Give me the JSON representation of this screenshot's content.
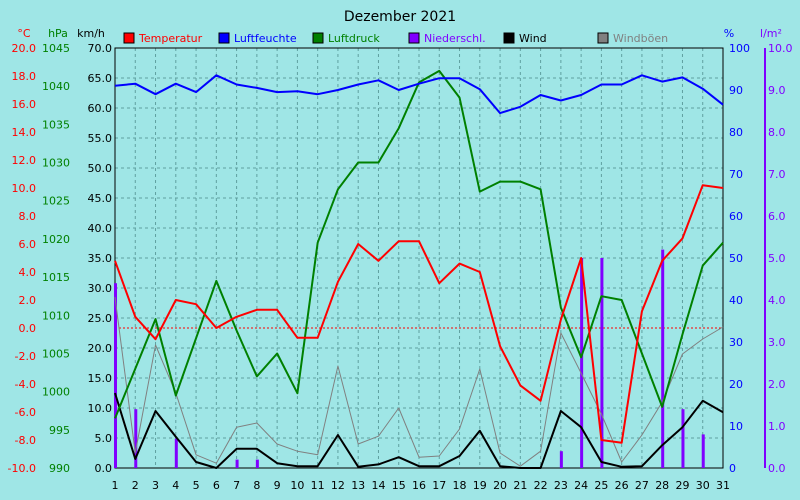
{
  "chart_data": {
    "type": "line",
    "title": "Dezember 2021",
    "x": [
      1,
      2,
      3,
      4,
      5,
      6,
      7,
      8,
      9,
      10,
      11,
      12,
      13,
      14,
      15,
      16,
      17,
      18,
      19,
      20,
      21,
      22,
      23,
      24,
      25,
      26,
      27,
      28,
      29,
      30,
      31
    ],
    "axes": {
      "temperature": {
        "unit": "°C",
        "range": [
          -10,
          20
        ],
        "ticks": [
          "20.0",
          "18.0",
          "16.0",
          "14.0",
          "12.0",
          "10.0",
          "8.0",
          "6.0",
          "4.0",
          "2.0",
          "0.0",
          "-2.0",
          "-4.0",
          "-6.0",
          "-8.0",
          "-10.0"
        ],
        "color": "#ff0000"
      },
      "pressure": {
        "unit": "hPa",
        "range": [
          990,
          1045
        ],
        "ticks": [
          "1045",
          "1040",
          "1035",
          "1030",
          "1025",
          "1020",
          "1015",
          "1010",
          "1005",
          "1000",
          "995",
          "990"
        ],
        "color": "#008000"
      },
      "wind": {
        "unit": "km/h",
        "range": [
          0,
          70
        ],
        "ticks": [
          "70.0",
          "65.0",
          "60.0",
          "55.0",
          "50.0",
          "45.0",
          "40.0",
          "35.0",
          "30.0",
          "25.0",
          "20.0",
          "15.0",
          "10.0",
          "5.0",
          "0.0"
        ],
        "color": "#000000"
      },
      "humidity": {
        "unit": "%",
        "range": [
          0,
          100
        ],
        "ticks": [
          "100",
          "90",
          "80",
          "70",
          "60",
          "50",
          "40",
          "30",
          "20",
          "10",
          "0"
        ],
        "color": "#0000ff"
      },
      "precipitation": {
        "unit": "l/m²",
        "range": [
          0,
          10
        ],
        "ticks": [
          "10.0",
          "9.0",
          "8.0",
          "7.0",
          "6.0",
          "5.0",
          "4.0",
          "3.0",
          "2.0",
          "1.0",
          "0.0"
        ],
        "color": "#8000ff"
      }
    },
    "series": [
      {
        "name": "Temperatur",
        "axis": "temperature",
        "color": "#ff0000",
        "values": [
          4.8,
          0.8,
          -0.8,
          2.0,
          1.7,
          0.0,
          0.8,
          1.3,
          1.3,
          -0.7,
          -0.7,
          3.3,
          6.0,
          4.8,
          6.2,
          6.2,
          3.2,
          4.6,
          4.0,
          -1.3,
          -4.1,
          -5.2,
          0.6,
          5.0,
          -8.0,
          -8.2,
          1.2,
          4.8,
          6.4,
          10.2,
          10.0
        ]
      },
      {
        "name": "Luftfeuchte",
        "axis": "humidity",
        "color": "#0000ff",
        "values": [
          91,
          91.5,
          89,
          91.5,
          89.5,
          93.5,
          91.3,
          90.5,
          89.5,
          89.7,
          89,
          90,
          91.3,
          92.3,
          90,
          91.5,
          92.8,
          92.8,
          90.2,
          84.5,
          86,
          88.8,
          87.5,
          88.8,
          91.3,
          91.3,
          93.5,
          92,
          93,
          90.3,
          86.5
        ]
      },
      {
        "name": "Luftdruck",
        "axis": "pressure",
        "color": "#008000",
        "values": [
          996.5,
          1003,
          1009.5,
          999.5,
          1007,
          1014.5,
          1008,
          1002,
          1005,
          999.8,
          1019.5,
          1026.5,
          1030,
          1030,
          1034.5,
          1040.5,
          1042,
          1038.5,
          1026.2,
          1027.5,
          1027.5,
          1026.5,
          1011,
          1004.5,
          1012.5,
          1012,
          1005,
          998,
          1007.5,
          1016.5,
          1019.5
        ]
      },
      {
        "name": "Wind",
        "axis": "wind",
        "color": "#000000",
        "values": [
          12.5,
          1.5,
          9.5,
          5.2,
          1.0,
          0.0,
          3.2,
          3.2,
          0.8,
          0.3,
          0.3,
          5.5,
          0.2,
          0.6,
          1.8,
          0.3,
          0.3,
          2.0,
          6.2,
          0.3,
          0.0,
          0.0,
          9.5,
          6.8,
          1.0,
          0.2,
          0.3,
          3.8,
          6.8,
          11.2,
          9.3
        ]
      },
      {
        "name": "Windböen",
        "axis": "wind",
        "color": "#808080",
        "values": [
          28.5,
          2.5,
          20.5,
          12.5,
          2.2,
          0.8,
          6.8,
          7.5,
          4.0,
          2.8,
          2.2,
          17.0,
          4.0,
          5.3,
          10.0,
          1.8,
          2.0,
          6.5,
          16.5,
          2.5,
          0.3,
          2.8,
          22.5,
          15.8,
          9.0,
          1.0,
          5.5,
          11.0,
          19.0,
          21.5,
          23.5
        ]
      },
      {
        "name": "Niederschl.",
        "axis": "precipitation",
        "color": "#8000ff",
        "type": "bar",
        "values": [
          4.4,
          1.4,
          0,
          0.7,
          0,
          0,
          0.2,
          0.2,
          0,
          0,
          0,
          0,
          0,
          0,
          0,
          0,
          0,
          0,
          0,
          0,
          0,
          0,
          0.4,
          5.0,
          5.0,
          0,
          0,
          5.2,
          1.4,
          0.8,
          0
        ]
      }
    ],
    "grid": true,
    "zero_line": {
      "axis": "temperature",
      "value": 0,
      "color": "#ff0000"
    },
    "legend": "top"
  }
}
